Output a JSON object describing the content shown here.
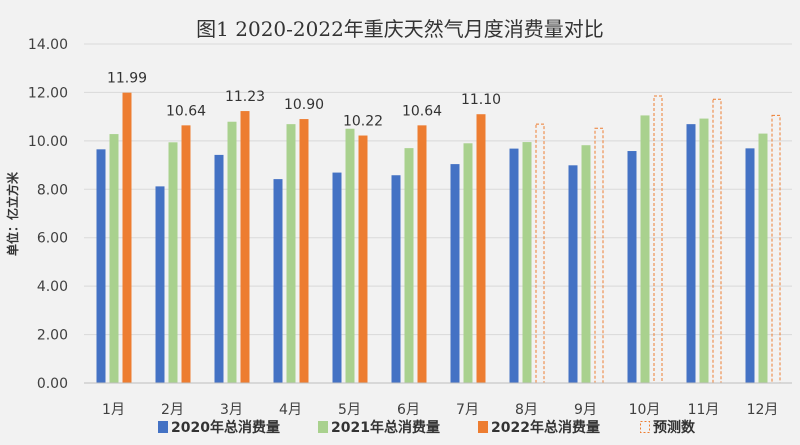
{
  "chart_data": {
    "type": "bar",
    "title": "图1   2020-2022年重庆天然气月度消费量对比",
    "ylabel": "单位：亿立方米",
    "xlabel": "",
    "ylim": [
      0,
      14
    ],
    "yticks": [
      "0.00",
      "2.00",
      "4.00",
      "6.00",
      "8.00",
      "10.00",
      "12.00",
      "14.00"
    ],
    "categories": [
      "1月",
      "2月",
      "3月",
      "4月",
      "5月",
      "6月",
      "7月",
      "8月",
      "9月",
      "10月",
      "11月",
      "12月"
    ],
    "grid": true,
    "legend_position": "bottom",
    "series": [
      {
        "name": "2020年总消费量",
        "color": "#4472c4",
        "style": "solid",
        "values": [
          9.65,
          8.12,
          9.42,
          8.42,
          8.69,
          8.58,
          9.04,
          9.68,
          8.99,
          9.58,
          10.69,
          9.69
        ]
      },
      {
        "name": "2021年总消费量",
        "color": "#a9d18e",
        "style": "solid",
        "values": [
          10.28,
          9.94,
          10.79,
          10.69,
          10.5,
          9.7,
          9.9,
          9.95,
          9.82,
          11.05,
          10.92,
          10.3
        ]
      },
      {
        "name": "2022年总消费量",
        "color": "#ed7d31",
        "style": "solid",
        "values": [
          11.99,
          10.64,
          11.23,
          10.9,
          10.22,
          10.64,
          11.1,
          null,
          null,
          null,
          null,
          null
        ],
        "data_labels": [
          "11.99",
          "10.64",
          "11.23",
          "10.90",
          "10.22",
          "10.64",
          "11.10"
        ]
      },
      {
        "name": "预测数",
        "color": "#ed7d31",
        "style": "dashed",
        "values": [
          null,
          null,
          null,
          null,
          null,
          null,
          null,
          10.69,
          10.52,
          11.85,
          11.72,
          11.05
        ]
      }
    ]
  }
}
